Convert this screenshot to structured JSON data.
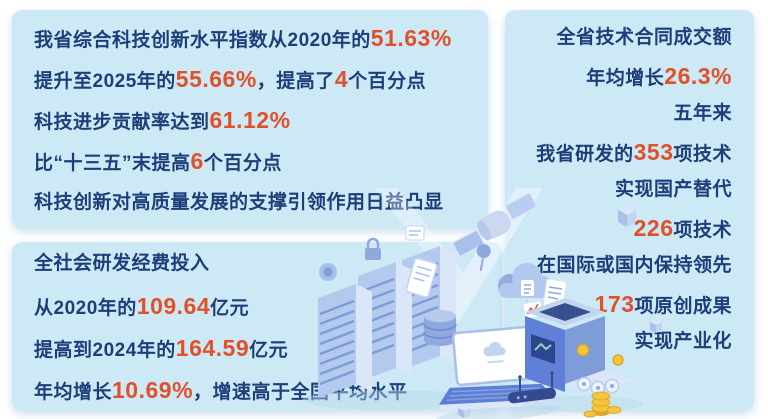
{
  "colors": {
    "page_bg": "#ffffff",
    "panel_bg": "#cde9f6",
    "text": "#1d3e78",
    "highlight": "#e0512a",
    "illustration_blue": "#7e9cd8",
    "coin_gold": "#f5c63c"
  },
  "panels": {
    "innovation_index": {
      "lines": [
        [
          {
            "t": "我省综合科技创新水平指数从2020年的",
            "h": false
          },
          {
            "t": "51.63%",
            "h": true
          }
        ],
        [
          {
            "t": "提升至2025年的",
            "h": false
          },
          {
            "t": "55.66%",
            "h": true
          },
          {
            "t": "，提高了",
            "h": false
          },
          {
            "t": "4",
            "h": true
          },
          {
            "t": "个百分点",
            "h": false
          }
        ],
        [
          {
            "t": "科技进步贡献率达到",
            "h": false
          },
          {
            "t": "61.12%",
            "h": true
          }
        ],
        [
          {
            "t": "比“十三五”末提高",
            "h": false
          },
          {
            "t": "6",
            "h": true
          },
          {
            "t": "个百分点",
            "h": false
          }
        ],
        [
          {
            "t": "科技创新对高质量发展的支撑引领作用日益凸显",
            "h": false
          }
        ]
      ]
    },
    "rd_investment": {
      "lines": [
        [
          {
            "t": "全社会研发经费投入",
            "h": false
          }
        ],
        [
          {
            "t": "从2020年的",
            "h": false
          },
          {
            "t": "109.64",
            "h": true
          },
          {
            "t": "亿元",
            "h": false
          }
        ],
        [
          {
            "t": "提高到2024年的",
            "h": false
          },
          {
            "t": "164.59",
            "h": true
          },
          {
            "t": "亿元",
            "h": false
          }
        ],
        [
          {
            "t": "年均增长",
            "h": false
          },
          {
            "t": "10.69%",
            "h": true
          },
          {
            "t": "，增速高于全国平均水平",
            "h": false
          }
        ]
      ]
    },
    "tech_contracts": {
      "lines": [
        [
          {
            "t": "全省技术合同成交额",
            "h": false
          }
        ],
        [
          {
            "t": "年均增长",
            "h": false
          },
          {
            "t": "26.3%",
            "h": true
          }
        ],
        [
          {
            "t": "五年来",
            "h": false
          }
        ],
        [
          {
            "t": "我省研发的",
            "h": false
          },
          {
            "t": "353",
            "h": true
          },
          {
            "t": "项技术",
            "h": false
          }
        ],
        [
          {
            "t": "实现国产替代",
            "h": false
          }
        ],
        [
          {
            "t": "226",
            "h": true
          },
          {
            "t": "项技术",
            "h": false
          }
        ],
        [
          {
            "t": "在国际或国内保持领先",
            "h": false
          }
        ],
        [
          {
            "t": "173",
            "h": true
          },
          {
            "t": "项原创成果",
            "h": false
          }
        ],
        [
          {
            "t": "实现产业化",
            "h": false
          }
        ]
      ]
    }
  },
  "illustration": {
    "icons": [
      "satellite-icon",
      "cloud-icon",
      "server-racks-icon",
      "shield-icon",
      "padlock-icon",
      "document-icon",
      "database-icon",
      "tablet-icon",
      "laptop-icon",
      "3d-printer-icon",
      "gold-coins-icon",
      "router-icon",
      "isometric-cube-icon"
    ]
  }
}
